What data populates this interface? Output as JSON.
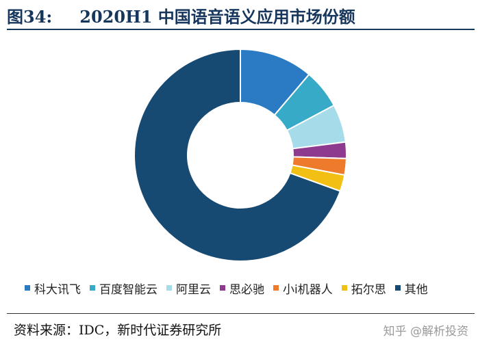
{
  "header": {
    "figure_no": "图34:",
    "title": "2020H1 中国语音语义应用市场份额"
  },
  "chart_data": {
    "type": "pie",
    "donut": true,
    "title": "2020H1 中国语音语义应用市场份额",
    "categories": [
      "科大讯飞",
      "百度智能云",
      "阿里云",
      "思必驰",
      "小i机器人",
      "拓尔思",
      "其他"
    ],
    "values": [
      11.2,
      6.0,
      5.8,
      2.5,
      2.5,
      2.5,
      69.5
    ],
    "colors": [
      "#2a7bc4",
      "#36aac6",
      "#a6dce9",
      "#8e3a8e",
      "#ee7a2c",
      "#f2c014",
      "#174a72"
    ],
    "legend_position": "bottom"
  },
  "footer": {
    "source": "资料来源：IDC，新时代证券研究所",
    "watermark": "知乎 @解析投资"
  }
}
